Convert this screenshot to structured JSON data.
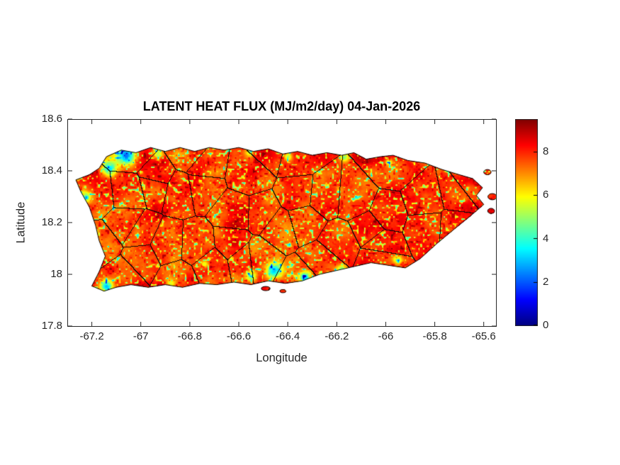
{
  "chart_data": {
    "type": "heatmap",
    "title": "LATENT HEAT FLUX (MJ/m2/day) 04-Jan-2026",
    "xlabel": "Longitude",
    "ylabel": "Latitude",
    "xlim": [
      -67.3,
      -65.55
    ],
    "ylim": [
      17.8,
      18.6
    ],
    "xticks": [
      -67.2,
      -67,
      -66.8,
      -66.6,
      -66.4,
      -66.2,
      -66,
      -65.8,
      -65.6
    ],
    "xtick_labels": [
      "-67.2",
      "-67",
      "-66.8",
      "-66.6",
      "-66.4",
      "-66.2",
      "-66",
      "-65.8",
      "-65.6"
    ],
    "yticks": [
      17.8,
      18,
      18.2,
      18.4,
      18.6
    ],
    "ytick_labels": [
      "17.8",
      "18",
      "18.2",
      "18.4",
      "18.6"
    ],
    "colormap": "jet",
    "colorbar": {
      "min": 0,
      "max": 9.5,
      "ticks": [
        0,
        2,
        4,
        6,
        8
      ],
      "tick_labels": [
        "0",
        "2",
        "4",
        "6",
        "8"
      ]
    },
    "region": "Puerto Rico with municipality boundaries",
    "geometry": {
      "coastline": [
        [
          -67.265,
          18.365
        ],
        [
          -67.21,
          18.385
        ],
        [
          -67.17,
          18.41
        ],
        [
          -67.14,
          18.455
        ],
        [
          -67.08,
          18.48
        ],
        [
          -67.02,
          18.47
        ],
        [
          -66.96,
          18.49
        ],
        [
          -66.9,
          18.475
        ],
        [
          -66.84,
          18.49
        ],
        [
          -66.78,
          18.475
        ],
        [
          -66.72,
          18.49
        ],
        [
          -66.66,
          18.48
        ],
        [
          -66.6,
          18.49
        ],
        [
          -66.54,
          18.475
        ],
        [
          -66.48,
          18.485
        ],
        [
          -66.42,
          18.465
        ],
        [
          -66.36,
          18.475
        ],
        [
          -66.3,
          18.46
        ],
        [
          -66.24,
          18.47
        ],
        [
          -66.18,
          18.46
        ],
        [
          -66.13,
          18.47
        ],
        [
          -66.08,
          18.445
        ],
        [
          -66.02,
          18.455
        ],
        [
          -65.97,
          18.46
        ],
        [
          -65.91,
          18.44
        ],
        [
          -65.84,
          18.43
        ],
        [
          -65.77,
          18.405
        ],
        [
          -65.7,
          18.385
        ],
        [
          -65.645,
          18.37
        ],
        [
          -65.605,
          18.335
        ],
        [
          -65.63,
          18.305
        ],
        [
          -65.6,
          18.27
        ],
        [
          -65.655,
          18.225
        ],
        [
          -65.72,
          18.175
        ],
        [
          -65.79,
          18.12
        ],
        [
          -65.86,
          18.06
        ],
        [
          -65.92,
          18.025
        ],
        [
          -65.99,
          18.035
        ],
        [
          -66.06,
          18.045
        ],
        [
          -66.13,
          18.03
        ],
        [
          -66.2,
          18.015
        ],
        [
          -66.27,
          18.0
        ],
        [
          -66.34,
          17.975
        ],
        [
          -66.41,
          17.965
        ],
        [
          -66.48,
          17.975
        ],
        [
          -66.55,
          17.96
        ],
        [
          -66.62,
          17.97
        ],
        [
          -66.69,
          17.96
        ],
        [
          -66.76,
          17.965
        ],
        [
          -66.83,
          17.95
        ],
        [
          -66.9,
          17.96
        ],
        [
          -66.97,
          17.95
        ],
        [
          -67.04,
          17.96
        ],
        [
          -67.1,
          17.95
        ],
        [
          -67.15,
          17.935
        ],
        [
          -67.2,
          17.955
        ],
        [
          -67.17,
          18.01
        ],
        [
          -67.145,
          18.07
        ],
        [
          -67.17,
          18.13
        ],
        [
          -67.185,
          18.19
        ],
        [
          -67.21,
          18.26
        ],
        [
          -67.245,
          18.32
        ]
      ],
      "islands": [
        {
          "c": [
            -66.49,
            17.945
          ],
          "rx": 0.018,
          "ry": 0.008
        },
        {
          "c": [
            -66.42,
            17.935
          ],
          "rx": 0.012,
          "ry": 0.006
        },
        {
          "c": [
            -65.585,
            18.395
          ],
          "rx": 0.015,
          "ry": 0.01
        },
        {
          "c": [
            -65.565,
            18.3
          ],
          "rx": 0.018,
          "ry": 0.012
        },
        {
          "c": [
            -65.57,
            18.245
          ],
          "rx": 0.014,
          "ry": 0.01
        }
      ]
    }
  },
  "style": {
    "axis_color": "#262626",
    "boundary_color": "#000000",
    "background": "#ffffff"
  }
}
